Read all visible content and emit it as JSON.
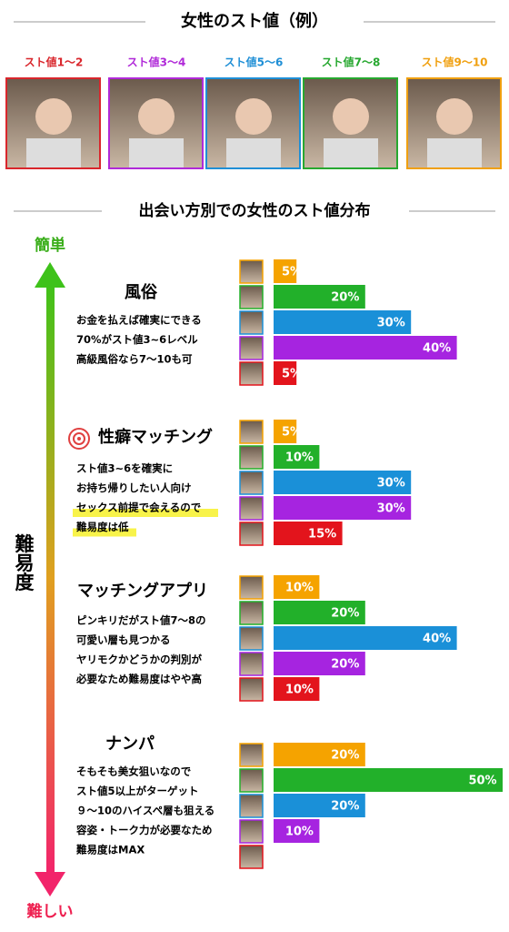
{
  "header": {
    "title": "女性のスト値（例）",
    "levels": [
      {
        "label": "スト値1〜2",
        "color": "#d9262c"
      },
      {
        "label": "スト値3〜4",
        "color": "#b02ad8"
      },
      {
        "label": "スト値5〜6",
        "color": "#1f8fd6"
      },
      {
        "label": "スト値7〜8",
        "color": "#27a830"
      },
      {
        "label": "スト値9〜10",
        "color": "#f0a010"
      }
    ]
  },
  "section_title": "出会い方別での女性のスト値分布",
  "axis": {
    "top": "簡単",
    "bottom": "難しい",
    "label": "難易度"
  },
  "chart_data": [
    {
      "type": "bar",
      "title": "風俗",
      "notes": [
        "お金を払えば確実にできる",
        "70%がスト値3~6レベル",
        "高級風俗なら7〜10も可"
      ],
      "highlight": [],
      "values": [
        5,
        20,
        30,
        40,
        5
      ],
      "value_labels": [
        "5%",
        "20%",
        "30%",
        "40%",
        "5%"
      ],
      "colors": [
        "#f5a300",
        "#22b02a",
        "#1a90d8",
        "#a624e0",
        "#e3141c"
      ]
    },
    {
      "type": "bar",
      "title": "性癖マッチング",
      "notes": [
        "スト値3~6を確実に",
        "お持ち帰りしたい人向け",
        "セックス前提で会えるので",
        "難易度は低"
      ],
      "highlight": [
        2,
        3
      ],
      "values": [
        5,
        10,
        30,
        30,
        15
      ],
      "value_labels": [
        "5%",
        "10%",
        "30%",
        "30%",
        "15%"
      ],
      "colors": [
        "#f5a300",
        "#22b02a",
        "#1a90d8",
        "#a624e0",
        "#e3141c"
      ]
    },
    {
      "type": "bar",
      "title": "マッチングアプリ",
      "notes": [
        "ピンキリだがスト値7〜8の",
        "可愛い層も見つかる",
        "ヤリモクかどうかの判別が",
        "必要なため難易度はやや高"
      ],
      "highlight": [],
      "values": [
        10,
        20,
        40,
        20,
        10
      ],
      "value_labels": [
        "10%",
        "20%",
        "40%",
        "20%",
        "10%"
      ],
      "colors": [
        "#f5a300",
        "#22b02a",
        "#1a90d8",
        "#a624e0",
        "#e3141c"
      ]
    },
    {
      "type": "bar",
      "title": "ナンパ",
      "notes": [
        "そもそも美女狙いなので",
        "スト値5以上がターゲット",
        "９〜10のハイスペ層も狙える",
        "容姿・トーク力が必要なため",
        "難易度はMAX"
      ],
      "highlight": [],
      "values": [
        20,
        50,
        20,
        10,
        0
      ],
      "value_labels": [
        "20%",
        "50%",
        "20%",
        "10%",
        null
      ],
      "colors": [
        "#f5a300",
        "#22b02a",
        "#1a90d8",
        "#a624e0",
        "#e3141c"
      ]
    }
  ]
}
